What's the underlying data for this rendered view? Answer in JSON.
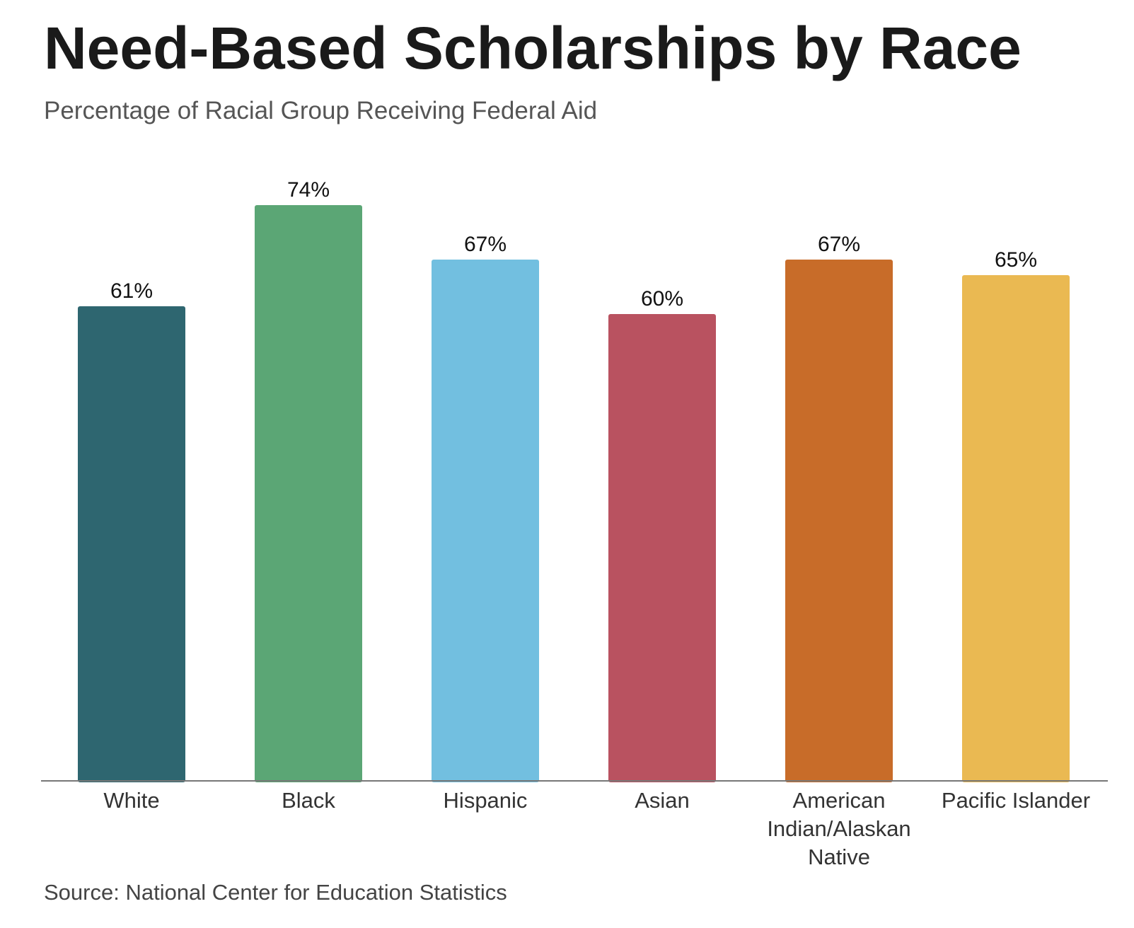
{
  "header": {
    "title": "Need-Based Scholarships by Race",
    "subtitle": "Percentage of Racial Group Receiving Federal Aid"
  },
  "footer": {
    "source": "Source: National Center for Education Statistics"
  },
  "chart_data": {
    "type": "bar",
    "title": "Need-Based Scholarships by Race",
    "subtitle": "Percentage of Racial Group Receiving Federal Aid",
    "categories": [
      "White",
      "Black",
      "Hispanic",
      "Asian",
      "American Indian/Alaskan Native",
      "Pacific Islander"
    ],
    "category_lines": [
      [
        "White"
      ],
      [
        "Black"
      ],
      [
        "Hispanic"
      ],
      [
        "Asian"
      ],
      [
        "American",
        "Indian/Alaskan",
        "Native"
      ],
      [
        "Pacific Islander"
      ]
    ],
    "values": [
      61,
      74,
      67,
      60,
      67,
      65
    ],
    "value_labels": [
      "61%",
      "74%",
      "67%",
      "60%",
      "67%",
      "65%"
    ],
    "colors": [
      "#2e6670",
      "#5ba675",
      "#72bfe0",
      "#b95260",
      "#c86c29",
      "#eab952"
    ],
    "ylim": [
      0,
      74
    ],
    "grid": false,
    "legend": "none",
    "xlabel": "",
    "ylabel": ""
  }
}
